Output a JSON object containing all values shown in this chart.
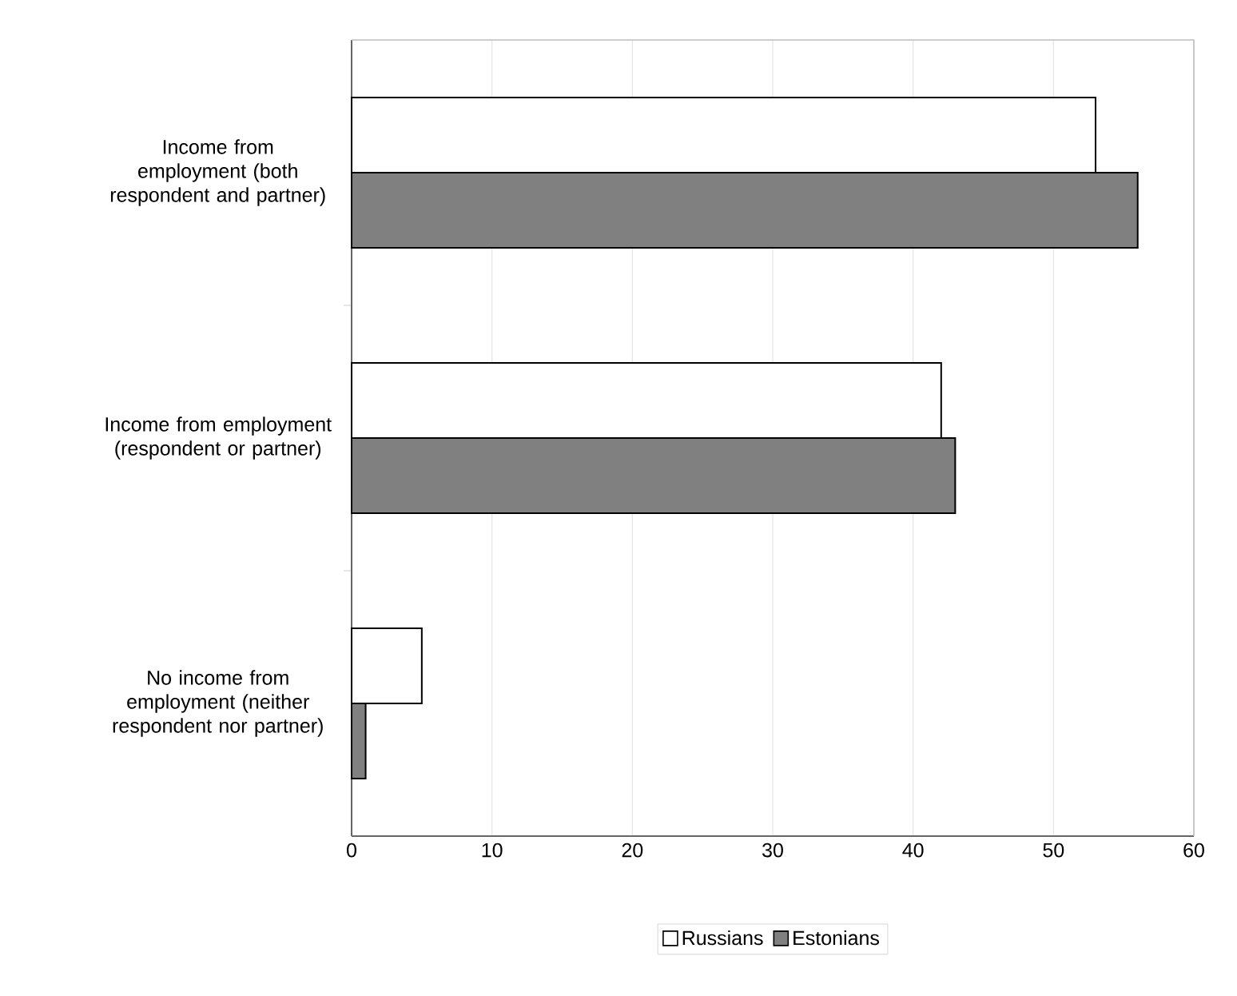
{
  "chart_data": {
    "type": "bar",
    "orientation": "horizontal",
    "categories": [
      "Income from employment (both respondent and partner)",
      "Income from employment (respondent or partner)",
      "No income from employment (neither respondent nor partner)"
    ],
    "series": [
      {
        "name": "Russians",
        "color": "#ffffff",
        "values": [
          53,
          42,
          5
        ]
      },
      {
        "name": "Estonians",
        "color": "#808080",
        "values": [
          56,
          43,
          1
        ]
      }
    ],
    "xlim": [
      0,
      60
    ],
    "xticks": [
      0,
      10,
      20,
      30,
      40,
      50,
      60
    ],
    "grid": "x",
    "legend": "bottom"
  }
}
